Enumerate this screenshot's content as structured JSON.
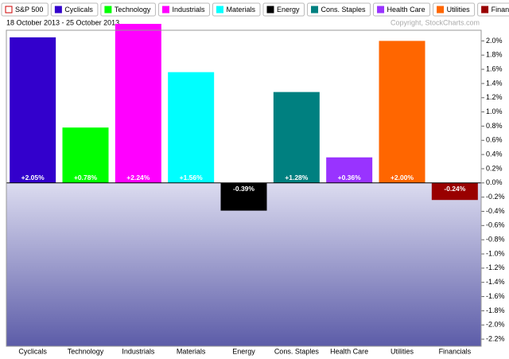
{
  "chart_data": {
    "type": "bar",
    "legend": [
      {
        "name": "S&P 500",
        "color": "#ffffff",
        "border": "#cc0000"
      },
      {
        "name": "Cyclicals",
        "color": "#3300cc"
      },
      {
        "name": "Technology",
        "color": "#00ff00"
      },
      {
        "name": "Industrials",
        "color": "#ff00ff"
      },
      {
        "name": "Materials",
        "color": "#00ffff"
      },
      {
        "name": "Energy",
        "color": "#000000"
      },
      {
        "name": "Cons. Staples",
        "color": "#008080"
      },
      {
        "name": "Health Care",
        "color": "#9933ff"
      },
      {
        "name": "Utilities",
        "color": "#ff6600"
      },
      {
        "name": "Financials",
        "color": "#990000"
      }
    ],
    "subtitle": "18 October 2013 - 25 October 2013",
    "copyright": "Copyright, StockCharts.com",
    "categories": [
      "Cyclicals",
      "Technology",
      "Industrials",
      "Materials",
      "Energy",
      "Cons. Staples",
      "Health Care",
      "Utilities",
      "Financials"
    ],
    "values": [
      2.05,
      0.78,
      2.24,
      1.56,
      -0.39,
      1.28,
      0.36,
      2.0,
      -0.24
    ],
    "value_labels": [
      "+2.05%",
      "+0.78%",
      "+2.24%",
      "+1.56%",
      "-0.39%",
      "+1.28%",
      "+0.36%",
      "+2.00%",
      "-0.24%"
    ],
    "colors": [
      "#3300cc",
      "#00ff00",
      "#ff00ff",
      "#00ffff",
      "#000000",
      "#008080",
      "#9933ff",
      "#ff6600",
      "#990000"
    ],
    "ylim": [
      -2.3,
      2.15
    ],
    "yticks": [
      {
        "value": 2.0,
        "label": "2.0%"
      },
      {
        "value": 1.8,
        "label": "1.8%"
      },
      {
        "value": 1.6,
        "label": "1.6%"
      },
      {
        "value": 1.4,
        "label": "1.4%"
      },
      {
        "value": 1.2,
        "label": "1.2%"
      },
      {
        "value": 1.0,
        "label": "1.0%"
      },
      {
        "value": 0.8,
        "label": "0.8%"
      },
      {
        "value": 0.6,
        "label": "0.6%"
      },
      {
        "value": 0.4,
        "label": "0.4%"
      },
      {
        "value": 0.2,
        "label": "0.2%"
      },
      {
        "value": 0.0,
        "label": "0.0%"
      },
      {
        "value": -0.2,
        "label": "-0.2%"
      },
      {
        "value": -0.4,
        "label": "-0.4%"
      },
      {
        "value": -0.6,
        "label": "-0.6%"
      },
      {
        "value": -0.8,
        "label": "-0.8%"
      },
      {
        "value": -1.0,
        "label": "-1.0%"
      },
      {
        "value": -1.2,
        "label": "-1.2%"
      },
      {
        "value": -1.4,
        "label": "-1.4%"
      },
      {
        "value": -1.6,
        "label": "-1.6%"
      },
      {
        "value": -1.8,
        "label": "-1.8%"
      },
      {
        "value": -2.0,
        "label": "-2.0%"
      },
      {
        "value": -2.2,
        "label": "-2.2%"
      }
    ]
  }
}
